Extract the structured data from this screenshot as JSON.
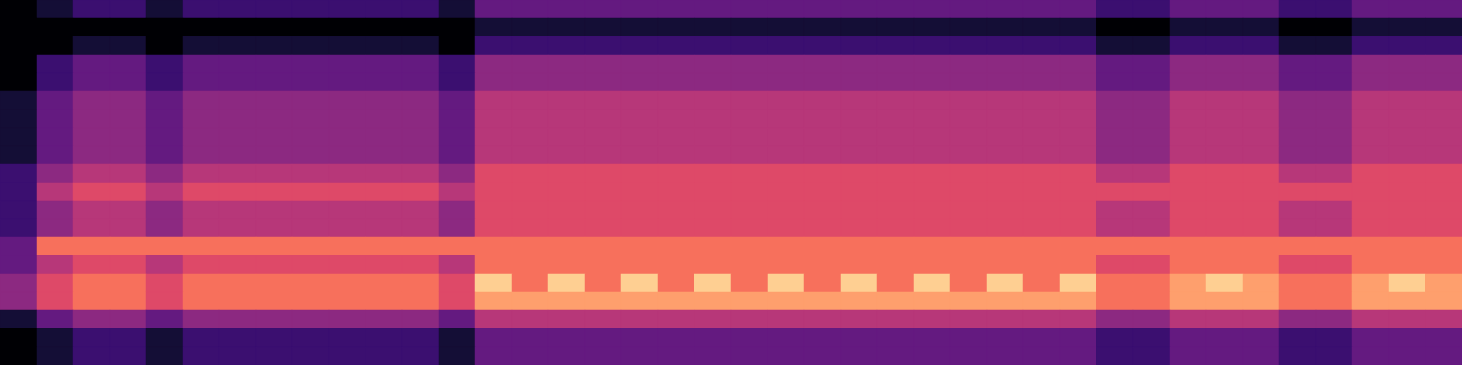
{
  "chart_data": {
    "type": "heatmap",
    "tick_labels": false,
    "color": "magma",
    "zlim": [
      0,
      10
    ],
    "cells": [
      [
        0,
        1,
        2,
        2,
        1,
        2,
        2,
        2,
        2,
        2,
        2,
        2,
        1,
        3,
        3,
        3,
        3,
        3,
        3,
        3,
        3,
        3,
        3,
        3,
        3,
        3,
        3,
        3,
        3,
        3,
        2,
        2,
        3,
        3,
        3,
        2,
        2,
        3,
        3,
        3
      ],
      [
        0,
        0,
        0,
        0,
        0,
        0,
        0,
        0,
        0,
        0,
        0,
        0,
        0,
        1,
        1,
        1,
        1,
        1,
        1,
        1,
        1,
        1,
        1,
        1,
        1,
        1,
        1,
        1,
        1,
        1,
        0,
        0,
        1,
        1,
        1,
        0,
        0,
        1,
        1,
        1
      ],
      [
        0,
        0,
        1,
        1,
        0,
        1,
        1,
        1,
        1,
        1,
        1,
        1,
        0,
        2,
        2,
        2,
        2,
        2,
        2,
        2,
        2,
        2,
        2,
        2,
        2,
        2,
        2,
        2,
        2,
        2,
        1,
        1,
        2,
        2,
        2,
        1,
        1,
        2,
        2,
        2
      ],
      [
        0,
        2,
        3,
        3,
        2,
        3,
        3,
        3,
        3,
        3,
        3,
        3,
        2,
        4,
        4,
        4,
        4,
        4,
        4,
        4,
        4,
        4,
        4,
        4,
        4,
        4,
        4,
        4,
        4,
        4,
        3,
        3,
        4,
        4,
        4,
        3,
        3,
        4,
        4,
        4
      ],
      [
        0,
        2,
        3,
        3,
        2,
        3,
        3,
        3,
        3,
        3,
        3,
        3,
        2,
        4,
        4,
        4,
        4,
        4,
        4,
        4,
        4,
        4,
        4,
        4,
        4,
        4,
        4,
        4,
        4,
        4,
        3,
        3,
        4,
        4,
        4,
        3,
        3,
        4,
        4,
        4
      ],
      [
        1,
        3,
        4,
        4,
        3,
        4,
        4,
        4,
        4,
        4,
        4,
        4,
        3,
        5,
        5,
        5,
        5,
        5,
        5,
        5,
        5,
        5,
        5,
        5,
        5,
        5,
        5,
        5,
        5,
        5,
        4,
        4,
        5,
        5,
        5,
        4,
        4,
        5,
        5,
        5
      ],
      [
        1,
        3,
        4,
        4,
        3,
        4,
        4,
        4,
        4,
        4,
        4,
        4,
        3,
        5,
        5,
        5,
        5,
        5,
        5,
        5,
        5,
        5,
        5,
        5,
        5,
        5,
        5,
        5,
        5,
        5,
        4,
        4,
        5,
        5,
        5,
        4,
        4,
        5,
        5,
        5
      ],
      [
        1,
        3,
        4,
        4,
        3,
        4,
        4,
        4,
        4,
        4,
        4,
        4,
        3,
        5,
        5,
        5,
        5,
        5,
        5,
        5,
        5,
        5,
        5,
        5,
        5,
        5,
        5,
        5,
        5,
        5,
        4,
        4,
        5,
        5,
        5,
        4,
        4,
        5,
        5,
        5
      ],
      [
        1,
        3,
        4,
        4,
        3,
        4,
        4,
        4,
        4,
        4,
        4,
        4,
        3,
        5,
        5,
        5,
        5,
        5,
        5,
        5,
        5,
        5,
        5,
        5,
        5,
        5,
        5,
        5,
        5,
        5,
        4,
        4,
        5,
        5,
        5,
        4,
        4,
        5,
        5,
        5
      ],
      [
        2,
        4,
        5,
        5,
        4,
        5,
        5,
        5,
        5,
        5,
        5,
        5,
        4,
        6,
        6,
        6,
        6,
        6,
        6,
        6,
        6,
        6,
        6,
        6,
        6,
        6,
        6,
        6,
        6,
        6,
        5,
        5,
        6,
        6,
        6,
        5,
        5,
        6,
        6,
        6
      ],
      [
        2,
        5,
        6,
        6,
        5,
        6,
        6,
        6,
        6,
        6,
        6,
        6,
        5,
        6,
        6,
        6,
        6,
        6,
        6,
        6,
        6,
        6,
        6,
        6,
        6,
        6,
        6,
        6,
        6,
        6,
        6,
        6,
        6,
        6,
        6,
        6,
        6,
        6,
        6,
        6
      ],
      [
        2,
        4,
        5,
        5,
        4,
        5,
        5,
        5,
        5,
        5,
        5,
        5,
        4,
        6,
        6,
        6,
        6,
        6,
        6,
        6,
        6,
        6,
        6,
        6,
        6,
        6,
        6,
        6,
        6,
        6,
        5,
        5,
        6,
        6,
        6,
        5,
        5,
        6,
        6,
        6
      ],
      [
        2,
        4,
        5,
        5,
        4,
        5,
        5,
        5,
        5,
        5,
        5,
        5,
        4,
        6,
        6,
        6,
        6,
        6,
        6,
        6,
        6,
        6,
        6,
        6,
        6,
        6,
        6,
        6,
        6,
        6,
        5,
        5,
        6,
        6,
        6,
        5,
        5,
        6,
        6,
        6
      ],
      [
        3,
        7,
        7,
        7,
        7,
        7,
        7,
        7,
        7,
        7,
        7,
        7,
        7,
        7,
        7,
        7,
        7,
        7,
        7,
        7,
        7,
        7,
        7,
        7,
        7,
        7,
        7,
        7,
        7,
        7,
        7,
        7,
        7,
        7,
        7,
        7,
        7,
        7,
        7,
        7
      ],
      [
        3,
        5,
        6,
        6,
        5,
        6,
        6,
        6,
        6,
        6,
        6,
        6,
        5,
        7,
        7,
        7,
        7,
        7,
        7,
        7,
        7,
        7,
        7,
        7,
        7,
        7,
        7,
        7,
        7,
        7,
        6,
        6,
        7,
        7,
        7,
        6,
        6,
        7,
        7,
        7
      ],
      [
        4,
        6,
        7,
        7,
        6,
        7,
        7,
        7,
        7,
        7,
        7,
        7,
        6,
        9,
        7,
        9,
        7,
        9,
        7,
        9,
        7,
        9,
        7,
        9,
        7,
        9,
        7,
        9,
        7,
        9,
        7,
        7,
        8,
        9,
        8,
        7,
        7,
        8,
        9,
        8
      ],
      [
        4,
        6,
        7,
        7,
        6,
        7,
        7,
        7,
        7,
        7,
        7,
        7,
        6,
        8,
        8,
        8,
        8,
        8,
        8,
        8,
        8,
        8,
        8,
        8,
        8,
        8,
        8,
        8,
        8,
        8,
        7,
        7,
        8,
        8,
        8,
        7,
        7,
        8,
        8,
        8
      ],
      [
        1,
        3,
        4,
        4,
        3,
        4,
        4,
        4,
        4,
        4,
        4,
        4,
        3,
        5,
        5,
        5,
        5,
        5,
        5,
        5,
        5,
        5,
        5,
        5,
        5,
        5,
        5,
        5,
        5,
        5,
        4,
        4,
        5,
        5,
        5,
        4,
        4,
        5,
        5,
        5
      ],
      [
        0,
        1,
        2,
        2,
        1,
        2,
        2,
        2,
        2,
        2,
        2,
        2,
        1,
        3,
        3,
        3,
        3,
        3,
        3,
        3,
        3,
        3,
        3,
        3,
        3,
        3,
        3,
        3,
        3,
        3,
        2,
        2,
        3,
        3,
        3,
        2,
        2,
        3,
        3,
        3
      ],
      [
        0,
        1,
        2,
        2,
        1,
        2,
        2,
        2,
        2,
        2,
        2,
        2,
        1,
        3,
        3,
        3,
        3,
        3,
        3,
        3,
        3,
        3,
        3,
        3,
        3,
        3,
        3,
        3,
        3,
        3,
        2,
        2,
        3,
        3,
        3,
        2,
        2,
        3,
        3,
        3
      ]
    ]
  }
}
